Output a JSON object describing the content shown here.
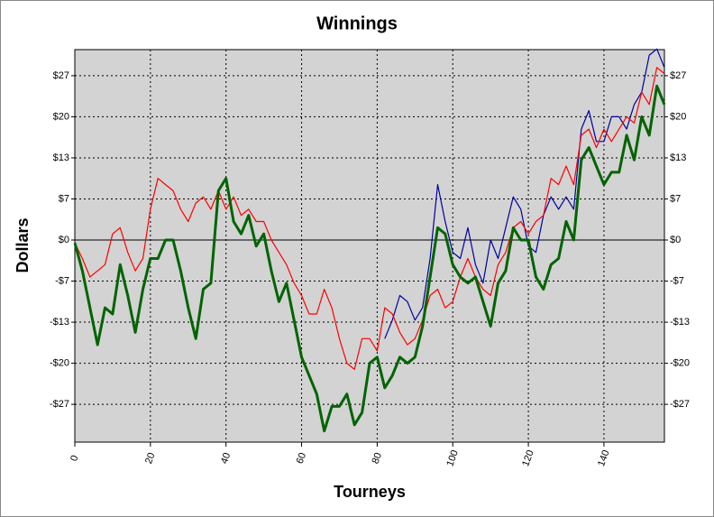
{
  "chart_data": {
    "type": "line",
    "title": "Winnings",
    "x_label": "Tourneys",
    "y_label": "Dollars",
    "x": [
      0,
      2,
      4,
      6,
      8,
      10,
      12,
      14,
      16,
      18,
      20,
      22,
      24,
      26,
      28,
      30,
      32,
      34,
      36,
      38,
      40,
      42,
      44,
      46,
      48,
      50,
      52,
      54,
      56,
      58,
      60,
      62,
      64,
      66,
      68,
      70,
      72,
      74,
      76,
      78,
      80,
      82,
      84,
      86,
      88,
      90,
      92,
      94,
      96,
      98,
      100,
      102,
      104,
      106,
      108,
      110,
      112,
      114,
      116,
      118,
      120,
      122,
      124,
      126,
      128,
      130,
      132,
      134,
      136,
      138,
      140,
      142,
      144,
      146,
      148,
      150,
      152,
      154,
      156
    ],
    "series": [
      {
        "color": "#0000a0",
        "values": [
          null,
          null,
          null,
          null,
          null,
          null,
          null,
          null,
          null,
          null,
          null,
          null,
          null,
          null,
          null,
          null,
          null,
          null,
          null,
          null,
          null,
          null,
          null,
          null,
          null,
          null,
          null,
          null,
          null,
          null,
          null,
          null,
          null,
          null,
          null,
          null,
          null,
          null,
          null,
          null,
          null,
          -16,
          -13,
          -9,
          -10,
          -13,
          -11,
          -3,
          9,
          3,
          -2,
          -3,
          2,
          -4,
          -7,
          0,
          -3,
          2,
          7,
          5,
          -1,
          -2,
          4,
          7,
          5,
          7,
          5,
          18,
          21,
          16,
          16,
          20,
          20,
          18,
          22,
          24,
          30,
          31,
          28
        ]
      },
      {
        "color": "#ff0000",
        "values": [
          -0.5,
          -3,
          -6,
          -5,
          -4,
          1,
          2,
          -2,
          -5,
          -3,
          5,
          10,
          9,
          8,
          5,
          3,
          6,
          7,
          5,
          8,
          5,
          7,
          4,
          5,
          3,
          3,
          0,
          -2,
          -4,
          -7,
          -9,
          -12,
          -12,
          -8,
          -11,
          -16,
          -20,
          -21,
          -16,
          -16,
          -18,
          -11,
          -12,
          -15,
          -17,
          -16,
          -13,
          -9,
          -8,
          -11,
          -10,
          -6,
          -3,
          -6,
          -8,
          -9,
          -4,
          -2,
          2,
          3,
          1,
          3,
          4,
          10,
          9,
          12,
          9,
          17,
          18,
          15,
          18,
          16,
          18,
          20,
          19,
          24,
          22,
          28,
          27
        ]
      },
      {
        "color": "#006400",
        "values": [
          -0.5,
          -5,
          -11,
          -17,
          -11,
          -12,
          -4,
          -9,
          -15,
          -8,
          -3,
          -3,
          0,
          0,
          -5,
          -11,
          -16,
          -8,
          -7,
          8,
          10,
          3,
          1,
          4,
          -1,
          1,
          -5,
          -10,
          -7,
          -13,
          -19,
          -22,
          -25,
          -31,
          -27,
          -27,
          -25,
          -30,
          -28,
          -20,
          -19,
          -24,
          -22,
          -19,
          -20,
          -19,
          -14,
          -6,
          2,
          1,
          -4,
          -6,
          -7,
          -6,
          -10,
          -14,
          -7,
          -5,
          2,
          0,
          0,
          -6,
          -8,
          -4,
          -3,
          3,
          0,
          13,
          15,
          12,
          9,
          11,
          11,
          17,
          13,
          20,
          17,
          25,
          22
        ]
      }
    ],
    "xlim": [
      0,
      156
    ],
    "xticks": [
      0,
      20,
      40,
      60,
      80,
      100,
      120,
      140
    ],
    "ylim": [
      -32.8,
      30.9
    ],
    "yticks": [
      {
        "value": -26.667,
        "label": "-$27"
      },
      {
        "value": -20,
        "label": "-$20"
      },
      {
        "value": -13.333,
        "label": "-$13"
      },
      {
        "value": -6.667,
        "label": "-$7"
      },
      {
        "value": 0,
        "label": "$0"
      },
      {
        "value": 6.667,
        "label": "$7"
      },
      {
        "value": 13.333,
        "label": "$13"
      },
      {
        "value": 20,
        "label": "$20"
      },
      {
        "value": 26.667,
        "label": "$27"
      }
    ],
    "grid": true
  }
}
